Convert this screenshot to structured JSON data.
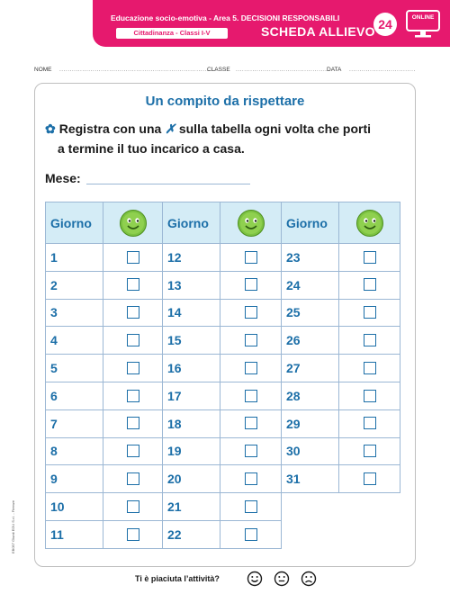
{
  "header": {
    "line1": "Educazione socio-emotiva - Area 5. DECISIONI RESPONSABILI",
    "tag": "Cittadinanza - Classi I-V",
    "title": "SCHEDA ALLIEVO",
    "number": "24",
    "online_label": "ONLINE",
    "colors": {
      "band": "#e6196e",
      "text": "#ffffff"
    }
  },
  "fields": {
    "nome": "NOME",
    "classe": "CLASSE",
    "data": "DATA"
  },
  "worksheet": {
    "title": "Un compito da rispettare",
    "instruction_line1": "Registra con una",
    "instruction_mark": "✗",
    "instruction_line1_end": "sulla tabella ogni volta che porti",
    "instruction_line2": "a termine il tuo incarico a casa.",
    "month_label": "Mese:"
  },
  "table": {
    "header_label": "Giorno",
    "columns": [
      [
        "1",
        "2",
        "3",
        "4",
        "5",
        "6",
        "7",
        "8",
        "9",
        "10",
        "11"
      ],
      [
        "12",
        "13",
        "14",
        "15",
        "16",
        "17",
        "18",
        "19",
        "20",
        "21",
        "22"
      ],
      [
        "23",
        "24",
        "25",
        "26",
        "27",
        "28",
        "29",
        "30",
        "31"
      ]
    ],
    "colors": {
      "header_bg": "#d4ecf6",
      "number": "#1c6fa8",
      "smiley": "#7cc242"
    }
  },
  "footer": {
    "question": "Ti è piaciuta l’attività?",
    "faces": [
      "happy-face-icon",
      "neutral-face-icon",
      "sad-face-icon"
    ]
  },
  "side_code": "EB057 Giunti EDU S.r.l. - Firenze"
}
